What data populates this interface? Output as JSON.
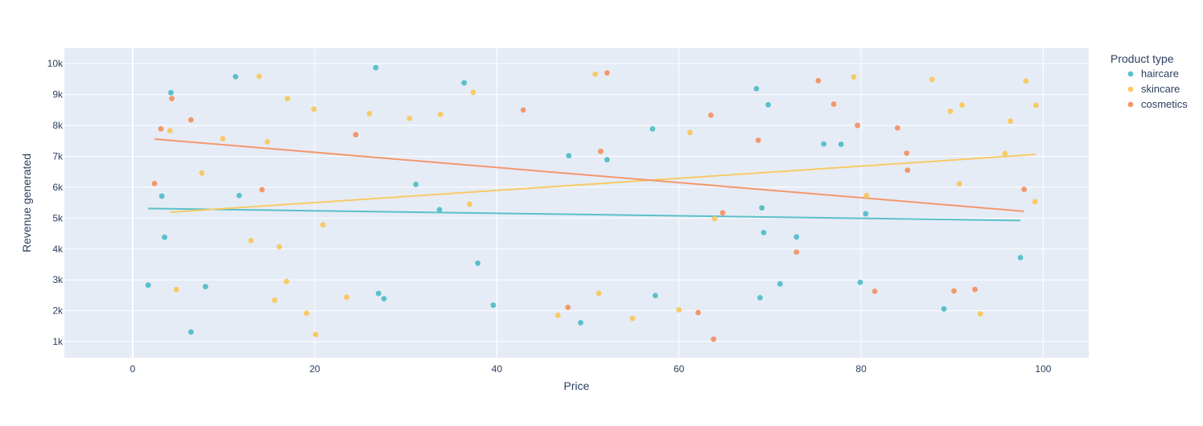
{
  "chart_data": {
    "type": "scatter",
    "title": "",
    "xlabel": "Price",
    "ylabel": "Revenue generated",
    "xlim": [
      -7.5,
      105
    ],
    "ylim": [
      480,
      10500
    ],
    "xticks": [
      0,
      20,
      40,
      60,
      80,
      100
    ],
    "xtick_labels": [
      "0",
      "20",
      "40",
      "60",
      "80",
      "100"
    ],
    "yticks": [
      1000,
      2000,
      3000,
      4000,
      5000,
      6000,
      7000,
      8000,
      9000,
      10000
    ],
    "ytick_labels": [
      "1k",
      "2k",
      "3k",
      "4k",
      "5k",
      "6k",
      "7k",
      "8k",
      "9k",
      "10k"
    ],
    "grid": true,
    "legend": {
      "title": "Product type",
      "placement": "right"
    },
    "colors": {
      "background": "#E5ECF6",
      "grid": "#ffffff",
      "text": "#2a3f5f"
    },
    "series": [
      {
        "name": "haircare",
        "color": "#5BC0C9",
        "points": [
          [
            1.7,
            2830
          ],
          [
            3.2,
            5710
          ],
          [
            3.5,
            4380
          ],
          [
            4.2,
            9060
          ],
          [
            6.4,
            1310
          ],
          [
            8.0,
            2780
          ],
          [
            11.3,
            9580
          ],
          [
            11.7,
            5730
          ],
          [
            26.7,
            9870
          ],
          [
            27.0,
            2560
          ],
          [
            27.6,
            2390
          ],
          [
            31.1,
            6090
          ],
          [
            33.7,
            5270
          ],
          [
            36.4,
            9380
          ],
          [
            37.9,
            3540
          ],
          [
            39.6,
            2180
          ],
          [
            47.9,
            7020
          ],
          [
            49.2,
            1610
          ],
          [
            52.1,
            6890
          ],
          [
            57.1,
            7890
          ],
          [
            57.4,
            2490
          ],
          [
            68.5,
            9190
          ],
          [
            68.9,
            2420
          ],
          [
            69.1,
            5330
          ],
          [
            69.3,
            4530
          ],
          [
            69.8,
            8670
          ],
          [
            71.1,
            2870
          ],
          [
            72.9,
            4390
          ],
          [
            75.9,
            7400
          ],
          [
            77.8,
            7390
          ],
          [
            79.9,
            2920
          ],
          [
            80.5,
            5140
          ],
          [
            89.1,
            2060
          ],
          [
            97.5,
            3720
          ]
        ],
        "trend": [
          [
            1.7,
            5310
          ],
          [
            97.5,
            4920
          ]
        ]
      },
      {
        "name": "skincare",
        "color": "#F7CA65",
        "points": [
          [
            4.1,
            7830
          ],
          [
            4.8,
            2690
          ],
          [
            7.6,
            6460
          ],
          [
            9.9,
            7570
          ],
          [
            13.0,
            4270
          ],
          [
            13.9,
            9590
          ],
          [
            14.8,
            7470
          ],
          [
            15.6,
            2340
          ],
          [
            16.1,
            4070
          ],
          [
            16.9,
            2950
          ],
          [
            17.0,
            8870
          ],
          [
            19.1,
            1920
          ],
          [
            19.9,
            8530
          ],
          [
            20.1,
            1230
          ],
          [
            20.9,
            4780
          ],
          [
            23.5,
            2440
          ],
          [
            26.0,
            8380
          ],
          [
            30.4,
            8230
          ],
          [
            33.8,
            8360
          ],
          [
            37.0,
            5450
          ],
          [
            37.4,
            9070
          ],
          [
            46.7,
            1850
          ],
          [
            50.8,
            9660
          ],
          [
            51.2,
            2560
          ],
          [
            54.9,
            1750
          ],
          [
            60.0,
            2030
          ],
          [
            61.2,
            7770
          ],
          [
            63.9,
            4980
          ],
          [
            79.2,
            9570
          ],
          [
            80.6,
            5730
          ],
          [
            87.8,
            9490
          ],
          [
            89.8,
            8460
          ],
          [
            90.8,
            6110
          ],
          [
            91.1,
            8660
          ],
          [
            93.1,
            1900
          ],
          [
            95.8,
            7090
          ],
          [
            96.4,
            8140
          ],
          [
            98.1,
            9440
          ],
          [
            99.1,
            5530
          ],
          [
            99.2,
            8650
          ]
        ],
        "trend": [
          [
            4.1,
            5190
          ],
          [
            99.2,
            7060
          ]
        ]
      },
      {
        "name": "cosmetics",
        "color": "#F4976C",
        "points": [
          [
            2.4,
            6120
          ],
          [
            3.1,
            7890
          ],
          [
            4.3,
            8870
          ],
          [
            6.4,
            8180
          ],
          [
            14.2,
            5920
          ],
          [
            24.5,
            7700
          ],
          [
            42.9,
            8500
          ],
          [
            47.8,
            2110
          ],
          [
            51.4,
            7160
          ],
          [
            52.1,
            9700
          ],
          [
            62.1,
            1940
          ],
          [
            63.5,
            8330
          ],
          [
            63.8,
            1080
          ],
          [
            64.8,
            5170
          ],
          [
            68.7,
            7520
          ],
          [
            72.9,
            3900
          ],
          [
            75.3,
            9450
          ],
          [
            77.0,
            8690
          ],
          [
            79.6,
            8000
          ],
          [
            81.5,
            2630
          ],
          [
            84.0,
            7920
          ],
          [
            85.0,
            7100
          ],
          [
            85.1,
            6550
          ],
          [
            90.2,
            2640
          ],
          [
            92.5,
            2690
          ],
          [
            97.9,
            5930
          ]
        ],
        "trend": [
          [
            2.4,
            7560
          ],
          [
            97.9,
            5220
          ]
        ]
      }
    ]
  }
}
